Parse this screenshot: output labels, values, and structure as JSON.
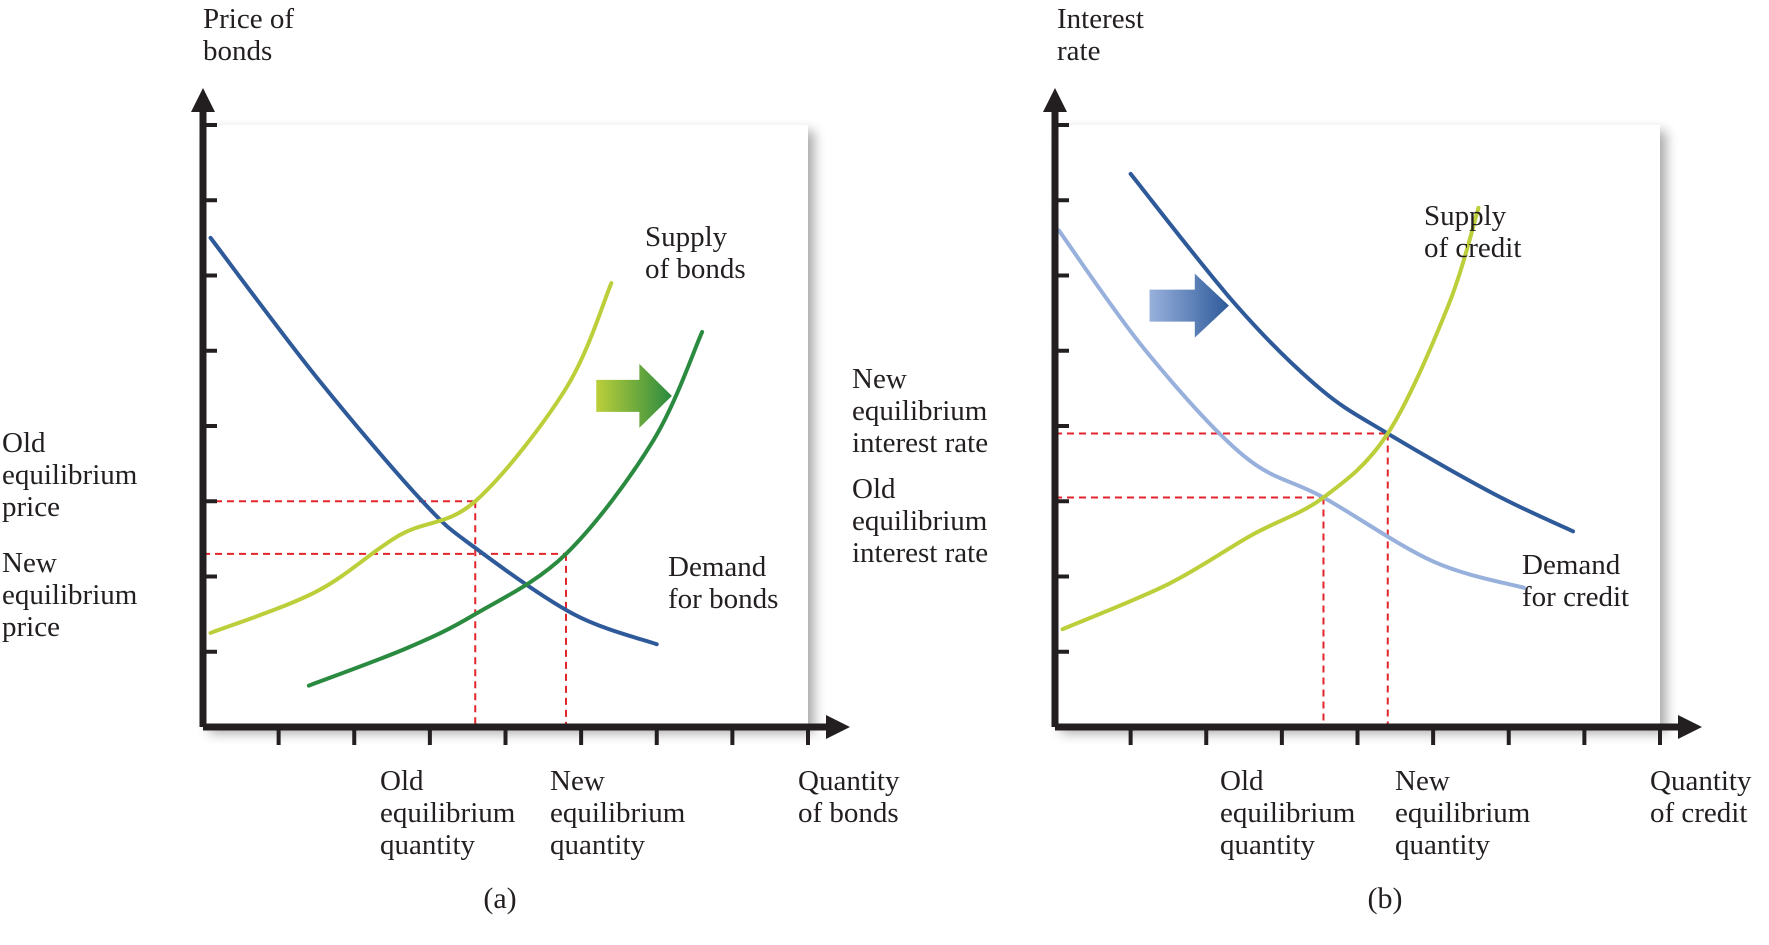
{
  "colors": {
    "axis": "#231f20",
    "guide": "#e2252b",
    "supply_old": "#bccf3a",
    "supply_new": "#2a8a3f",
    "demand_old": "#98b1dc",
    "demand_new": "#2e5a9a",
    "shadow": "#c8c8c8"
  },
  "chart_data": [
    {
      "type": "line",
      "panel_label": "(a)",
      "ylabel": [
        "Price of",
        "bonds"
      ],
      "xlabel": [
        "Quantity",
        "of bonds"
      ],
      "xlim": [
        0,
        8
      ],
      "ylim": [
        0,
        8
      ],
      "grid": false,
      "ticks": {
        "x": [
          1,
          2,
          3,
          4,
          5,
          6,
          7,
          8
        ],
        "y": [
          1,
          2,
          3,
          4,
          5,
          6,
          7,
          8
        ]
      },
      "series": [
        {
          "id": "demand_bonds",
          "color_key": "demand_new",
          "name_lines": [
            "Demand",
            "for bonds"
          ],
          "points": [
            [
              0.1,
              6.5
            ],
            [
              1.5,
              4.65
            ],
            [
              2.9,
              3.0
            ],
            [
              3.6,
              2.38
            ],
            [
              4.9,
              1.5
            ],
            [
              6.0,
              1.1
            ]
          ]
        },
        {
          "id": "supply_bonds_old",
          "color_key": "supply_old",
          "name_lines": [
            "Supply",
            "of bonds"
          ],
          "points": [
            [
              0.1,
              1.25
            ],
            [
              1.5,
              1.8
            ],
            [
              2.6,
              2.55
            ],
            [
              3.6,
              3.0
            ],
            [
              4.8,
              4.5
            ],
            [
              5.4,
              5.9
            ]
          ]
        },
        {
          "id": "supply_bonds_new",
          "color_key": "supply_new",
          "name_lines": [],
          "points": [
            [
              1.4,
              0.55
            ],
            [
              2.7,
              1.05
            ],
            [
              3.6,
              1.5
            ],
            [
              4.8,
              2.3
            ],
            [
              5.95,
              3.8
            ],
            [
              6.6,
              5.25
            ]
          ]
        }
      ],
      "shift_arrow": {
        "from": [
          5.2,
          4.4
        ],
        "to": [
          6.2,
          4.4
        ],
        "gradient": [
          "supply_old",
          "supply_new"
        ]
      },
      "equilibria": [
        {
          "name": "old",
          "x": 3.6,
          "y": 3.0,
          "x_label": [
            "Old",
            "equilibrium",
            "quantity"
          ],
          "y_label": [
            "Old",
            "equilibrium",
            "price"
          ]
        },
        {
          "name": "new",
          "x": 4.8,
          "y": 2.3,
          "x_label": [
            "New",
            "equilibrium",
            "quantity"
          ],
          "y_label": [
            "New",
            "equilibrium",
            "price"
          ]
        }
      ]
    },
    {
      "type": "line",
      "panel_label": "(b)",
      "ylabel": [
        "Interest",
        "rate"
      ],
      "xlabel": [
        "Quantity",
        "of credit"
      ],
      "xlim": [
        0,
        8
      ],
      "ylim": [
        0,
        8
      ],
      "grid": false,
      "ticks": {
        "x": [
          1,
          2,
          3,
          4,
          5,
          6,
          7,
          8
        ],
        "y": [
          1,
          2,
          3,
          4,
          5,
          6,
          7,
          8
        ]
      },
      "series": [
        {
          "id": "demand_credit_old",
          "color_key": "demand_old",
          "name_lines": [],
          "points": [
            [
              0.05,
              6.6
            ],
            [
              1.2,
              5.0
            ],
            [
              2.5,
              3.6
            ],
            [
              3.55,
              3.05
            ],
            [
              5.0,
              2.2
            ],
            [
              6.2,
              1.85
            ]
          ]
        },
        {
          "id": "demand_credit_new",
          "color_key": "demand_new",
          "name_lines": [
            "Demand",
            "for credit"
          ],
          "points": [
            [
              1.0,
              7.35
            ],
            [
              2.4,
              5.6
            ],
            [
              3.5,
              4.5
            ],
            [
              4.4,
              3.9
            ],
            [
              5.8,
              3.1
            ],
            [
              6.85,
              2.6
            ]
          ]
        },
        {
          "id": "supply_credit",
          "color_key": "supply_old",
          "name_lines": [
            "Supply",
            "of credit"
          ],
          "points": [
            [
              0.1,
              1.3
            ],
            [
              1.5,
              1.9
            ],
            [
              2.6,
              2.55
            ],
            [
              3.55,
              3.05
            ],
            [
              4.4,
              3.9
            ],
            [
              5.2,
              5.6
            ],
            [
              5.6,
              6.9
            ]
          ]
        }
      ],
      "shift_arrow": {
        "from": [
          1.25,
          5.6
        ],
        "to": [
          2.3,
          5.6
        ],
        "gradient": [
          "demand_old",
          "demand_new"
        ]
      },
      "equilibria": [
        {
          "name": "old",
          "x": 3.55,
          "y": 3.05,
          "x_label": [
            "Old",
            "equilibrium",
            "quantity"
          ],
          "y_label": [
            "Old",
            "equilibrium",
            "interest rate"
          ]
        },
        {
          "name": "new",
          "x": 4.4,
          "y": 3.9,
          "x_label": [
            "New",
            "equilibrium",
            "quantity"
          ],
          "y_label": [
            "New",
            "equilibrium",
            "interest rate"
          ]
        }
      ]
    }
  ]
}
